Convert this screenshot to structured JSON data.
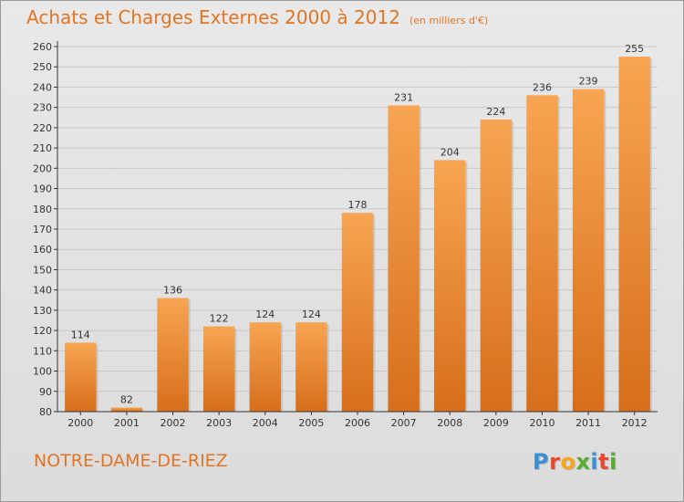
{
  "colors": {
    "accent": "#e07524",
    "bar_top": "#f7a552",
    "bar_bottom": "#d76e1b",
    "grid": "#c8c8c8",
    "axis": "#333333"
  },
  "header": {
    "title": "Achats et Charges Externes 2000 à 2012",
    "subtitle": "(en milliers d'€)"
  },
  "footer": {
    "location": "NOTRE-DAME-DE-RIEZ",
    "brand": "Proxiti",
    "brand_letters": [
      {
        "ch": "P",
        "color": "#3a8fd6"
      },
      {
        "ch": "r",
        "color": "#e94a2e"
      },
      {
        "ch": "o",
        "color": "#f5a623"
      },
      {
        "ch": "x",
        "color": "#5aab2f"
      },
      {
        "ch": "i",
        "color": "#3a8fd6"
      },
      {
        "ch": "t",
        "color": "#e94a2e"
      },
      {
        "ch": "i",
        "color": "#5aab2f"
      }
    ]
  },
  "chart_data": {
    "type": "bar",
    "title": "Achats et Charges Externes 2000 à 2012",
    "subtitle": "(en milliers d'€)",
    "categories": [
      "2000",
      "2001",
      "2002",
      "2003",
      "2004",
      "2005",
      "2006",
      "2007",
      "2008",
      "2009",
      "2010",
      "2011",
      "2012"
    ],
    "values": [
      114,
      82,
      136,
      122,
      124,
      124,
      178,
      231,
      204,
      224,
      236,
      239,
      255
    ],
    "ylim": [
      80,
      260
    ],
    "ytick_step": 10,
    "grid": true,
    "data_labels": true
  }
}
